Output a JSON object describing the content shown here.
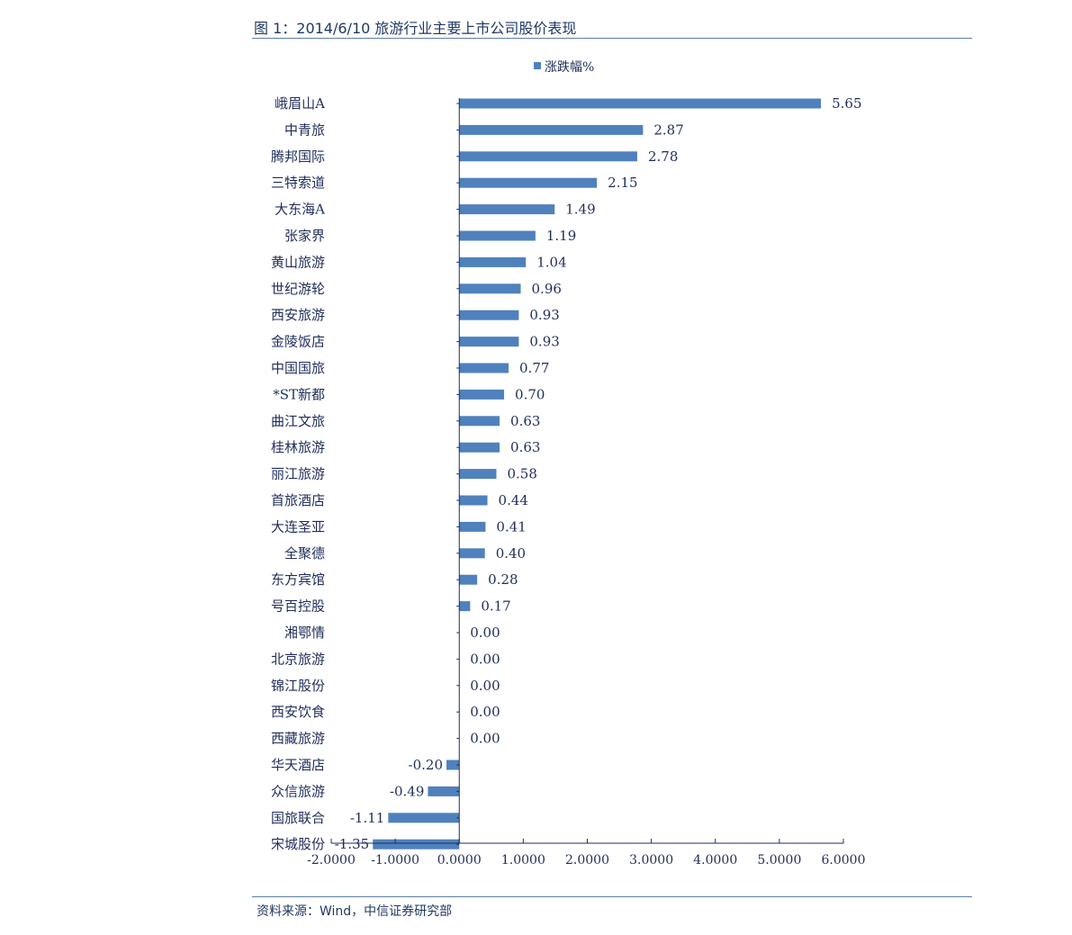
{
  "figure": {
    "title": "图 1：2014/6/10 旅游行业主要上市公司股价表现",
    "source": "资料来源：Wind，中信证券研究部"
  },
  "chart_data": {
    "type": "bar",
    "orientation": "horizontal",
    "categories": [
      "峨眉山A",
      "中青旅",
      "腾邦国际",
      "三特索道",
      "大东海A",
      "张家界",
      "黄山旅游",
      "世纪游轮",
      "西安旅游",
      "金陵饭店",
      "中国国旅",
      "*ST新都",
      "曲江文旅",
      "桂林旅游",
      "丽江旅游",
      "首旅酒店",
      "大连圣亚",
      "全聚德",
      "东方宾馆",
      "号百控股",
      "湘鄂情",
      "北京旅游",
      "锦江股份",
      "西安饮食",
      "西藏旅游",
      "华天酒店",
      "众信旅游",
      "国旅联合",
      "宋城股份"
    ],
    "series": [
      {
        "name": "涨跌幅%",
        "values": [
          5.65,
          2.87,
          2.78,
          2.15,
          1.49,
          1.19,
          1.04,
          0.96,
          0.93,
          0.93,
          0.77,
          0.7,
          0.63,
          0.63,
          0.58,
          0.44,
          0.41,
          0.4,
          0.28,
          0.17,
          0.0,
          0.0,
          0.0,
          0.0,
          0.0,
          -0.2,
          -0.49,
          -1.11,
          -1.35
        ],
        "data_labels": [
          "5.65",
          "2.87",
          "2.78",
          "2.15",
          "1.49",
          "1.19",
          "1.04",
          "0.96",
          "0.93",
          "0.93",
          "0.77",
          "0.70",
          "0.63",
          "0.63",
          "0.58",
          "0.44",
          "0.41",
          "0.40",
          "0.28",
          "0.17",
          "0.00",
          "0.00",
          "0.00",
          "0.00",
          "0.00",
          "-0.20",
          "-0.49",
          "-1.11",
          "-1.35"
        ]
      }
    ],
    "xlim": [
      -2,
      6
    ],
    "x_ticks": [
      -2,
      -1,
      0,
      1,
      2,
      3,
      4,
      5,
      6
    ],
    "x_tick_labels": [
      "-2.0000",
      "-1.0000",
      "0.0000",
      "1.0000",
      "2.0000",
      "3.0000",
      "4.0000",
      "5.0000",
      "6.0000"
    ],
    "legend_position": "top-center",
    "grid": false,
    "bar_color": "#4f81bd"
  }
}
